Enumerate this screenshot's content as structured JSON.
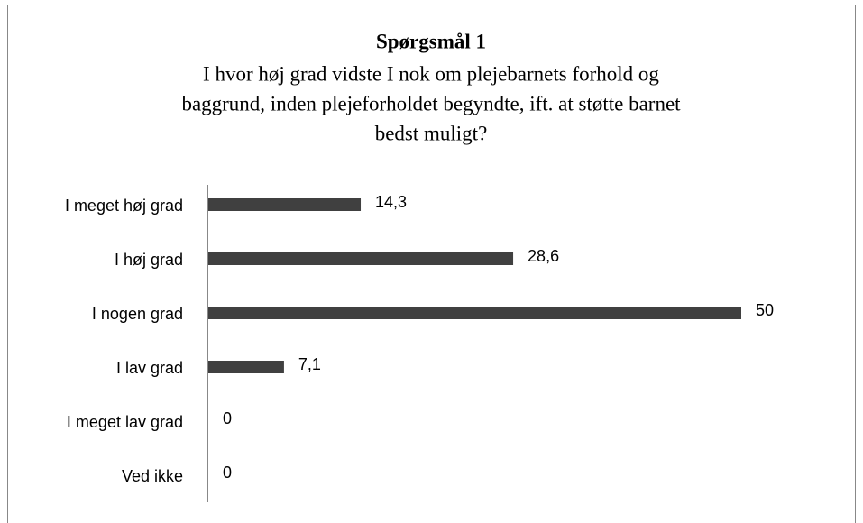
{
  "chart_data": {
    "type": "bar",
    "orientation": "horizontal",
    "title": "Spørgsmål 1",
    "subtitle": [
      "I hvor høj grad vidste I nok om plejebarnets forhold og",
      "baggrund, inden plejeforholdet begyndte, ift. at støtte barnet",
      "bedst muligt?"
    ],
    "categories": [
      "I meget høj grad",
      "I høj grad",
      "I nogen grad",
      "I lav grad",
      "I meget lav grad",
      "Ved ikke"
    ],
    "values": [
      14.3,
      28.6,
      50,
      7.1,
      0,
      0
    ],
    "value_labels": [
      "14,3",
      "28,6",
      "50",
      "7,1",
      "0",
      "0"
    ],
    "color": "#404040",
    "xlim": [
      0,
      50
    ]
  }
}
